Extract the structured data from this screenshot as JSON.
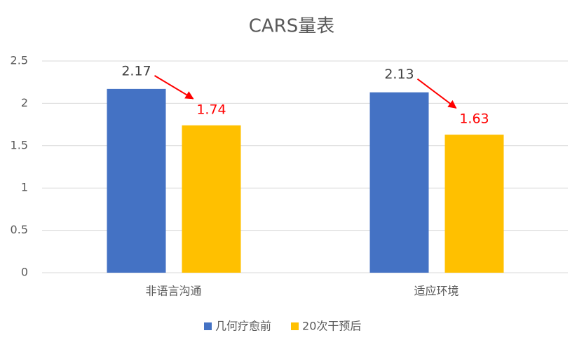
{
  "chart_data": {
    "type": "bar",
    "title": "CARS量表",
    "categories": [
      "非语言沟通",
      "适应环境"
    ],
    "series": [
      {
        "name": "几何疗愈前",
        "color": "#4472c4",
        "label_color": "#404040",
        "values": [
          2.17,
          2.13
        ]
      },
      {
        "name": "20次干预后",
        "color": "#ffc000",
        "label_color": "#ff0000",
        "values": [
          1.74,
          1.63
        ]
      }
    ],
    "ylim": [
      0,
      2.5
    ],
    "yticks": [
      0,
      0.5,
      1,
      1.5,
      2,
      2.5
    ],
    "grid": true,
    "legend": "bottom"
  }
}
